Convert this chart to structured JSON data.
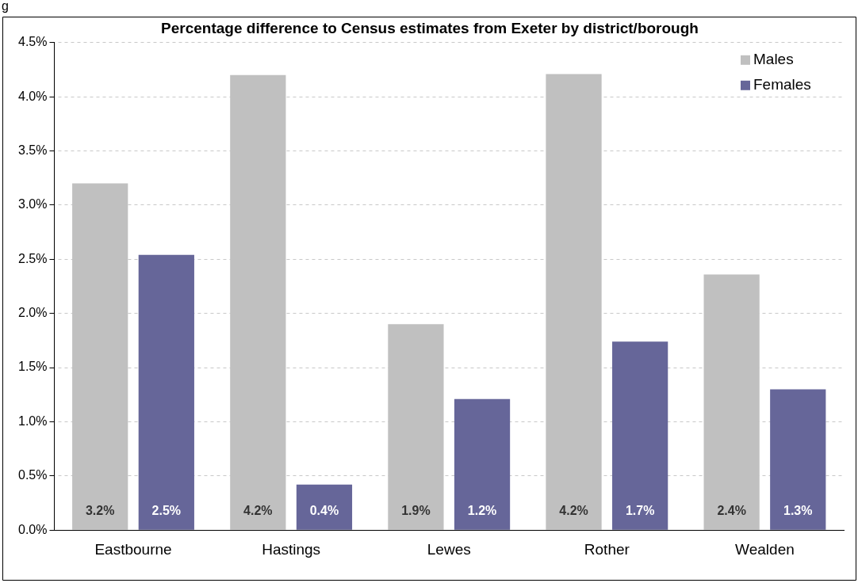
{
  "chart_data": {
    "type": "bar",
    "title": "Percentage difference to Census estimates from Exeter by district/borough",
    "categories": [
      "Eastbourne",
      "Hastings",
      "Lewes",
      "Rother",
      "Wealden"
    ],
    "series": [
      {
        "name": "Males",
        "color": "#c0c0c0",
        "values": [
          3.2,
          4.2,
          1.9,
          4.21,
          2.36
        ],
        "value_labels": [
          "3.2%",
          "4.2%",
          "1.9%",
          "4.2%",
          "2.4%"
        ]
      },
      {
        "name": "Females",
        "color": "#666699",
        "values": [
          2.54,
          0.42,
          1.21,
          1.74,
          1.3
        ],
        "value_labels": [
          "2.5%",
          "0.4%",
          "1.2%",
          "1.7%",
          "1.3%"
        ]
      }
    ],
    "ylim": [
      0,
      4.5
    ],
    "yticks": [
      {
        "value": 0,
        "label": "0.0%"
      },
      {
        "value": 0.5,
        "label": "0.5%"
      },
      {
        "value": 1,
        "label": "1.0%"
      },
      {
        "value": 1.5,
        "label": "1.5%"
      },
      {
        "value": 2,
        "label": "2.0%"
      },
      {
        "value": 2.5,
        "label": "2.5%"
      },
      {
        "value": 3,
        "label": "3.0%"
      },
      {
        "value": 3.5,
        "label": "3.5%"
      },
      {
        "value": 4,
        "label": "4.0%"
      },
      {
        "value": 4.5,
        "label": "4.5%"
      }
    ],
    "grid": "y",
    "legend": "top right",
    "annotations": [
      "g"
    ]
  }
}
